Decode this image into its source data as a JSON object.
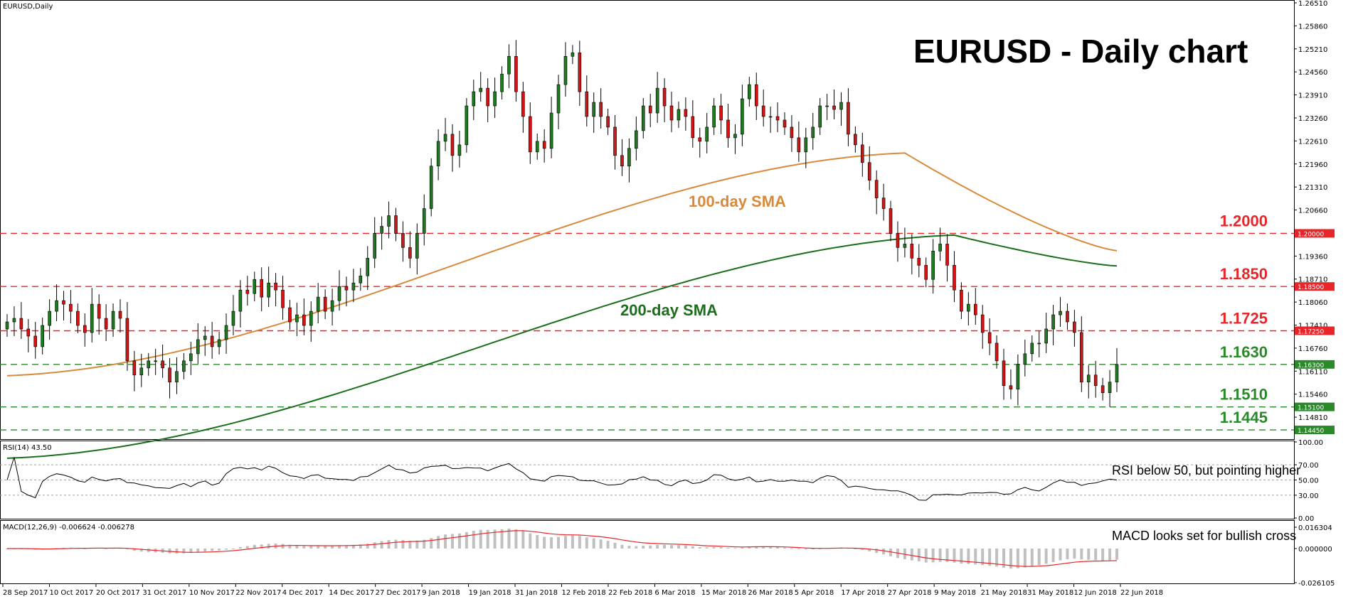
{
  "chart_title": "EURUSD - Daily chart",
  "main_label": "EURUSD,Daily",
  "rsi_label": "RSI(14) 43.50",
  "macd_label": "MACD(12,26,9) -0.006624 -0.006278",
  "sma100_label": "100-day SMA",
  "sma200_label": "200-day SMA",
  "rsi_note": "RSI below 50, but pointing higher",
  "macd_note": "MACD looks set for bullish cross",
  "colors": {
    "bull": "#1e7a1e",
    "bear": "#d21414",
    "sma100": "#d88a3c",
    "sma200": "#1b6e1b",
    "resistance": "#e8262a",
    "support": "#2a8a2a",
    "macd_hist": "#c0c0c0",
    "macd_signal": "#e8262a"
  },
  "chart_data": {
    "type": "candlestick",
    "symbol": "EURUSD",
    "timeframe": "Daily",
    "price_axis_ticks": [
      "1.26510",
      "1.25860",
      "1.25210",
      "1.24560",
      "1.23910",
      "1.23260",
      "1.22610",
      "1.21960",
      "1.21310",
      "1.20660",
      "1.20000",
      "1.19360",
      "1.18710",
      "1.18500",
      "1.18060",
      "1.17410",
      "1.17250",
      "1.16760",
      "1.16300",
      "1.16110",
      "1.15460",
      "1.15100",
      "1.14810",
      "1.14450"
    ],
    "ylim": [
      1.1425,
      1.2651
    ],
    "date_ticks": [
      "28 Sep 2017",
      "10 Oct 2017",
      "20 Oct 2017",
      "31 Oct 2017",
      "10 Nov 2017",
      "22 Nov 2017",
      "4 Dec 2017",
      "14 Dec 2017",
      "27 Dec 2017",
      "9 Jan 2018",
      "19 Jan 2018",
      "31 Jan 2018",
      "12 Feb 2018",
      "22 Feb 2018",
      "6 Mar 2018",
      "15 Mar 2018",
      "26 Mar 2018",
      "5 Apr 2018",
      "17 Apr 2018",
      "27 Apr 2018",
      "9 May 2018",
      "21 May 2018",
      "31 May 2018",
      "12 Jun 2018",
      "22 Jun 2018"
    ],
    "levels": [
      {
        "label": "1.2000",
        "value": 1.2,
        "kind": "resistance",
        "tag": "1.20000"
      },
      {
        "label": "1.1850",
        "value": 1.185,
        "kind": "resistance",
        "tag": "1.18500"
      },
      {
        "label": "1.1725",
        "value": 1.1725,
        "kind": "resistance",
        "tag": "1.17250"
      },
      {
        "label": "1.1630",
        "value": 1.163,
        "kind": "support",
        "tag": "1.16300"
      },
      {
        "label": "1.1510",
        "value": 1.151,
        "kind": "support",
        "tag": "1.15100"
      },
      {
        "label": "1.1445",
        "value": 1.1445,
        "kind": "support",
        "tag": "1.14450"
      }
    ],
    "closes": [
      1.175,
      1.176,
      1.173,
      1.171,
      1.168,
      1.174,
      1.178,
      1.181,
      1.18,
      1.178,
      1.174,
      1.172,
      1.18,
      1.176,
      1.173,
      1.178,
      1.176,
      1.164,
      1.16,
      1.162,
      1.164,
      1.164,
      1.162,
      1.158,
      1.161,
      1.164,
      1.166,
      1.17,
      1.171,
      1.168,
      1.17,
      1.174,
      1.178,
      1.184,
      1.183,
      1.187,
      1.182,
      1.186,
      1.184,
      1.179,
      1.175,
      1.177,
      1.174,
      1.178,
      1.182,
      1.178,
      1.181,
      1.185,
      1.184,
      1.186,
      1.188,
      1.193,
      1.2,
      1.202,
      1.205,
      1.2,
      1.196,
      1.193,
      1.2,
      1.207,
      1.219,
      1.226,
      1.228,
      1.222,
      1.225,
      1.236,
      1.24,
      1.241,
      1.236,
      1.24,
      1.245,
      1.25,
      1.24,
      1.233,
      1.223,
      1.226,
      1.224,
      1.234,
      1.242,
      1.25,
      1.251,
      1.24,
      1.233,
      1.237,
      1.233,
      1.23,
      1.222,
      1.219,
      1.224,
      1.229,
      1.236,
      1.234,
      1.241,
      1.236,
      1.232,
      1.235,
      1.233,
      1.227,
      1.226,
      1.23,
      1.236,
      1.232,
      1.227,
      1.228,
      1.238,
      1.242,
      1.236,
      1.233,
      1.233,
      1.232,
      1.23,
      1.227,
      1.223,
      1.227,
      1.23,
      1.236,
      1.236,
      1.235,
      1.237,
      1.228,
      1.225,
      1.22,
      1.215,
      1.21,
      1.207,
      1.2,
      1.196,
      1.197,
      1.193,
      1.191,
      1.187,
      1.195,
      1.197,
      1.191,
      1.184,
      1.178,
      1.18,
      1.177,
      1.172,
      1.169,
      1.164,
      1.157,
      1.156,
      1.163,
      1.166,
      1.169,
      1.169,
      1.173,
      1.177,
      1.178,
      1.175,
      1.172,
      1.158,
      1.16,
      1.157,
      1.155,
      1.158,
      1.163
    ],
    "sma100": {
      "start": 1.1598,
      "end": 1.1951,
      "peak_value": 1.2227,
      "peak_date": "17 Apr 2018"
    },
    "sma200": {
      "start": 1.1365,
      "end": 1.1908,
      "peak_value": 1.1995,
      "peak_date": "27 Apr 2018"
    },
    "rsi": {
      "ticks": [
        "100.00",
        "70.00",
        "50.00",
        "30.00",
        "0.00"
      ],
      "levels": [
        70,
        50,
        30
      ],
      "last": 43.5
    },
    "macd": {
      "ticks": [
        "0.016304",
        "0.000000",
        "-0.026105"
      ],
      "main": -0.006624,
      "signal": -0.006278
    }
  }
}
